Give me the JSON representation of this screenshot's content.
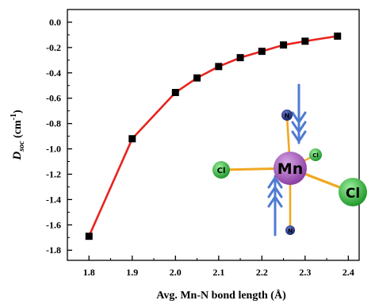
{
  "chart_data": {
    "type": "line",
    "title": "",
    "xlabel": "Avg. Mn-N bond length (Å)",
    "ylabel": {
      "main": "D",
      "sub": "soc",
      "unit": " (cm",
      "sup": "-1",
      "close": ")"
    },
    "xlim": [
      1.75,
      2.425
    ],
    "ylim": [
      -1.88,
      0.1
    ],
    "xticks": [
      1.8,
      1.9,
      2.0,
      2.1,
      2.2,
      2.3,
      2.4
    ],
    "xtick_labels": [
      "1.8",
      "1.9",
      "2.0",
      "2.1",
      "2.2",
      "2.3",
      "2.4"
    ],
    "yticks": [
      0.0,
      -0.2,
      -0.4,
      -0.6,
      -0.8,
      -1.0,
      -1.2,
      -1.4,
      -1.6,
      -1.8
    ],
    "ytick_labels": [
      "0.0",
      "-0.2",
      "-0.4",
      "-0.6",
      "-0.8",
      "-1.0",
      "-1.2",
      "-1.4",
      "-1.6",
      "-1.8"
    ],
    "grid": false,
    "series": [
      {
        "line_color": "#e8231e",
        "marker_color": "#000000",
        "x": [
          1.8,
          1.9,
          2.0,
          2.05,
          2.1,
          2.15,
          2.2,
          2.25,
          2.3,
          2.375
        ],
        "y": [
          -1.69,
          -0.92,
          -0.555,
          -0.44,
          -0.35,
          -0.28,
          -0.23,
          -0.18,
          -0.15,
          -0.11
        ]
      }
    ],
    "inset_molecule": {
      "center_atom": "Mn",
      "ligand_atoms": [
        "N",
        "N",
        "Cl",
        "Cl",
        "Cl"
      ],
      "colors": {
        "mn": "#a35fb6",
        "n": "#243a8a",
        "cl": "#3bb53b",
        "bond": "#f0a820",
        "arrow": "#4f7bd0"
      }
    }
  }
}
